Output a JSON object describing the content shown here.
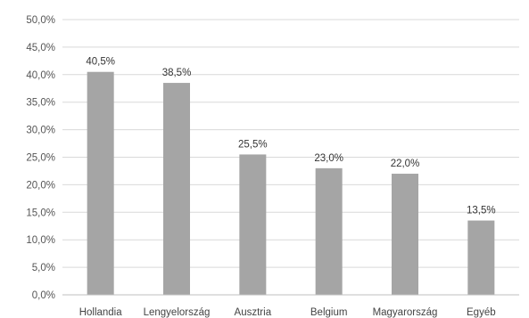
{
  "chart_data": {
    "type": "bar",
    "categories": [
      "Hollandia",
      "Lengyelország",
      "Ausztria",
      "Belgium",
      "Magyarország",
      "Egyéb"
    ],
    "values": [
      40.5,
      38.5,
      25.5,
      23.0,
      22.0,
      13.5
    ],
    "data_labels": [
      "40,5%",
      "38,5%",
      "25,5%",
      "23,0%",
      "22,0%",
      "13,5%"
    ],
    "y_ticks": [
      0,
      5,
      10,
      15,
      20,
      25,
      30,
      35,
      40,
      45,
      50
    ],
    "y_tick_labels": [
      "0,0%",
      "5,0%",
      "10,0%",
      "15,0%",
      "20,0%",
      "25,0%",
      "30,0%",
      "35,0%",
      "40,0%",
      "45,0%",
      "50,0%"
    ],
    "ylim": [
      0,
      50
    ],
    "grid": true,
    "legend": "none",
    "bar_color": "#a5a5a5",
    "title": "",
    "xlabel": "",
    "ylabel": ""
  }
}
